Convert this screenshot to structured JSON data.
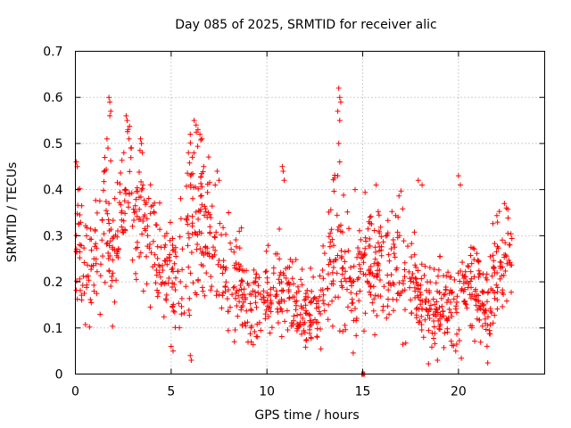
{
  "chart_data": {
    "type": "scatter",
    "title": "Day 085 of 2025, SRMTID for receiver alic",
    "xlabel": "GPS time / hours",
    "ylabel": "SRMTID / TECUs",
    "xlim": [
      0,
      24.5
    ],
    "ylim": [
      0,
      0.7
    ],
    "xticks": [
      0,
      5,
      10,
      15,
      20
    ],
    "xtick_labels": [
      "0",
      "5",
      "10",
      "15",
      "20"
    ],
    "yticks": [
      0,
      0.1,
      0.2,
      0.3,
      0.4,
      0.5,
      0.6,
      0.7
    ],
    "ytick_labels": [
      "0",
      "0.1",
      "0.2",
      "0.3",
      "0.4",
      "0.5",
      "0.6",
      "0.7"
    ],
    "grid": true,
    "marker": "plus",
    "color": "#ff0000",
    "series": [
      {
        "name": "SRMTID",
        "profile": [
          [
            0.0,
            0.33,
            0.07
          ],
          [
            0.5,
            0.22,
            0.06
          ],
          [
            1.0,
            0.24,
            0.06
          ],
          [
            1.5,
            0.33,
            0.08
          ],
          [
            2.0,
            0.25,
            0.07
          ],
          [
            2.5,
            0.38,
            0.08
          ],
          [
            3.0,
            0.33,
            0.07
          ],
          [
            3.5,
            0.34,
            0.07
          ],
          [
            4.0,
            0.3,
            0.06
          ],
          [
            4.5,
            0.24,
            0.06
          ],
          [
            5.0,
            0.2,
            0.06
          ],
          [
            5.5,
            0.21,
            0.07
          ],
          [
            6.0,
            0.33,
            0.1
          ],
          [
            6.5,
            0.32,
            0.09
          ],
          [
            7.0,
            0.3,
            0.07
          ],
          [
            7.5,
            0.2,
            0.06
          ],
          [
            8.0,
            0.19,
            0.06
          ],
          [
            8.5,
            0.22,
            0.06
          ],
          [
            9.0,
            0.14,
            0.05
          ],
          [
            9.5,
            0.16,
            0.05
          ],
          [
            10.0,
            0.17,
            0.05
          ],
          [
            10.5,
            0.18,
            0.06
          ],
          [
            11.0,
            0.18,
            0.05
          ],
          [
            11.5,
            0.15,
            0.05
          ],
          [
            12.0,
            0.14,
            0.04
          ],
          [
            12.5,
            0.15,
            0.05
          ],
          [
            13.0,
            0.18,
            0.05
          ],
          [
            13.5,
            0.28,
            0.08
          ],
          [
            14.0,
            0.27,
            0.08
          ],
          [
            14.5,
            0.2,
            0.06
          ],
          [
            15.0,
            0.22,
            0.07
          ],
          [
            15.5,
            0.24,
            0.07
          ],
          [
            16.0,
            0.25,
            0.07
          ],
          [
            16.5,
            0.22,
            0.06
          ],
          [
            17.0,
            0.24,
            0.07
          ],
          [
            17.5,
            0.22,
            0.06
          ],
          [
            18.0,
            0.16,
            0.05
          ],
          [
            18.5,
            0.15,
            0.05
          ],
          [
            19.0,
            0.15,
            0.05
          ],
          [
            19.5,
            0.14,
            0.05
          ],
          [
            20.0,
            0.15,
            0.05
          ],
          [
            20.5,
            0.18,
            0.05
          ],
          [
            21.0,
            0.19,
            0.05
          ],
          [
            21.5,
            0.14,
            0.05
          ],
          [
            22.0,
            0.22,
            0.06
          ],
          [
            22.5,
            0.25,
            0.06
          ],
          [
            22.8,
            0.24,
            0.06
          ]
        ],
        "points_per_hour": 55,
        "extra_points": [
          [
            0.05,
            0.46
          ],
          [
            0.1,
            0.45
          ],
          [
            0.15,
            0.4
          ],
          [
            1.75,
            0.6
          ],
          [
            1.8,
            0.59
          ],
          [
            1.85,
            0.57
          ],
          [
            1.8,
            0.56
          ],
          [
            1.65,
            0.51
          ],
          [
            1.7,
            0.49
          ],
          [
            2.65,
            0.56
          ],
          [
            2.7,
            0.55
          ],
          [
            2.75,
            0.53
          ],
          [
            2.8,
            0.51
          ],
          [
            2.9,
            0.49
          ],
          [
            3.4,
            0.51
          ],
          [
            3.45,
            0.5
          ],
          [
            3.5,
            0.48
          ],
          [
            6.2,
            0.55
          ],
          [
            6.3,
            0.54
          ],
          [
            6.4,
            0.53
          ],
          [
            6.5,
            0.52
          ],
          [
            6.6,
            0.51
          ],
          [
            6.0,
            0.52
          ],
          [
            5.9,
            0.48
          ],
          [
            6.1,
            0.47
          ],
          [
            6.7,
            0.45
          ],
          [
            7.4,
            0.44
          ],
          [
            7.5,
            0.42
          ],
          [
            7.3,
            0.41
          ],
          [
            10.8,
            0.45
          ],
          [
            10.85,
            0.44
          ],
          [
            10.9,
            0.42
          ],
          [
            13.75,
            0.62
          ],
          [
            13.8,
            0.6
          ],
          [
            13.85,
            0.59
          ],
          [
            13.7,
            0.57
          ],
          [
            13.8,
            0.55
          ],
          [
            13.75,
            0.5
          ],
          [
            13.8,
            0.46
          ],
          [
            13.7,
            0.43
          ],
          [
            14.6,
            0.4
          ],
          [
            15.7,
            0.41
          ],
          [
            17.9,
            0.42
          ],
          [
            18.1,
            0.41
          ],
          [
            20.0,
            0.43
          ],
          [
            20.1,
            0.41
          ],
          [
            22.4,
            0.37
          ],
          [
            22.5,
            0.36
          ],
          [
            5.0,
            0.06
          ],
          [
            5.1,
            0.05
          ],
          [
            6.0,
            0.04
          ],
          [
            6.05,
            0.03
          ],
          [
            8.3,
            0.07
          ],
          [
            18.9,
            0.03
          ],
          [
            15.0,
            0.0
          ],
          [
            15.05,
            0.0
          ],
          [
            15.1,
            0.0
          ],
          [
            14.95,
            0.0
          ]
        ]
      }
    ]
  }
}
